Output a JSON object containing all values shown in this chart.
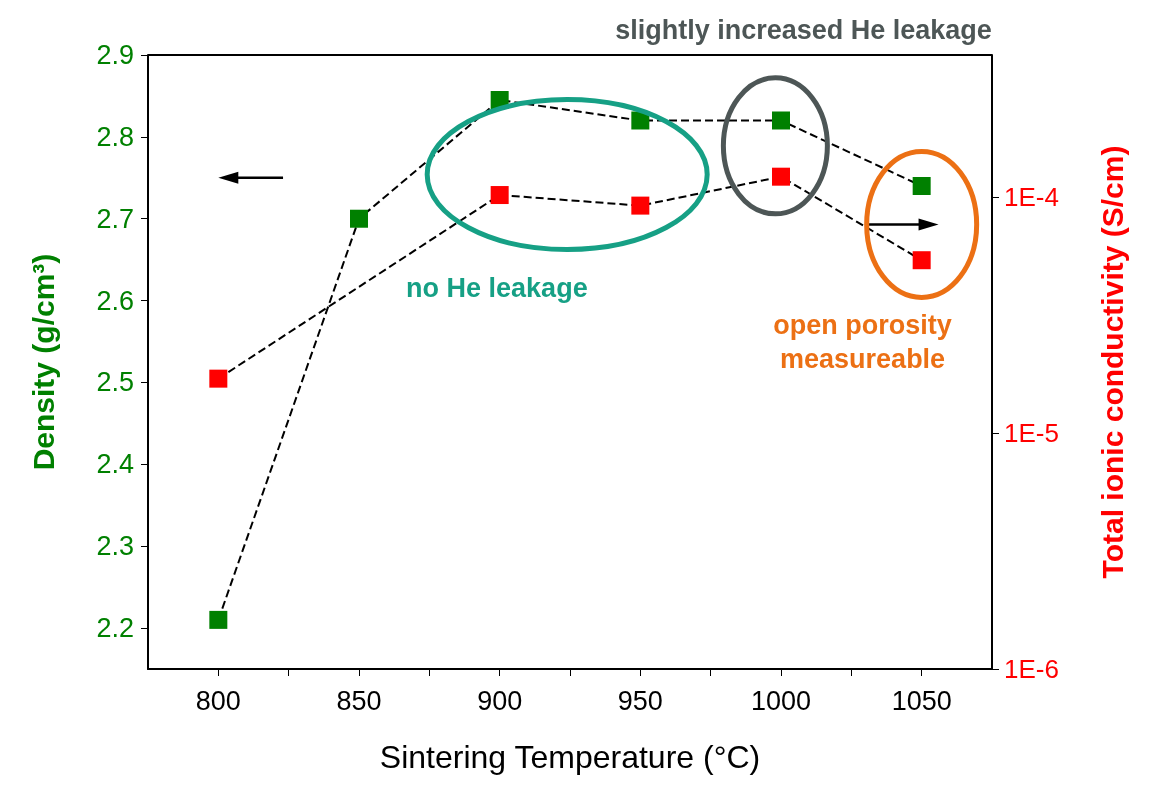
{
  "chart_data": {
    "type": "line",
    "xlabel": "Sintering Temperature (°C)",
    "ylabel": "Density (g/cm³)",
    "y2label": "Total ionic conductivity (S/cm)",
    "x": [
      800,
      850,
      900,
      950,
      1000,
      1050
    ],
    "series": [
      {
        "color": "#008000",
        "values": [
          2.21,
          2.7,
          2.845,
          2.82,
          2.82,
          2.74
        ]
      },
      {
        "color": "#ff0000",
        "axis": "y2",
        "x": [
          800,
          900,
          950,
          1000,
          1050
        ],
        "values": [
          1.7e-05,
          0.000102,
          9.2e-05,
          0.000122,
          5.4e-05
        ]
      }
    ],
    "xlim": [
      775,
      1075
    ],
    "xticks": [
      800,
      {
        "value": 825,
        "label": null
      },
      850,
      {
        "value": 875,
        "label": null
      },
      900,
      {
        "value": 925,
        "label": null
      },
      950,
      {
        "value": 975,
        "label": null
      },
      1000,
      {
        "value": 1025,
        "label": null
      },
      1050
    ],
    "ylim": [
      2.15,
      2.9
    ],
    "yticks": [
      2.2,
      2.3,
      2.4,
      2.5,
      2.6,
      2.7,
      2.8,
      2.9
    ],
    "y2lim": [
      1e-06,
      0.0004
    ],
    "y2ticks": [
      {
        "value": 1e-06,
        "label": "1E-6"
      },
      {
        "value": 1e-05,
        "label": "1E-5"
      },
      {
        "value": 0.0001,
        "label": "1E-4"
      }
    ],
    "log": "y2",
    "marker": "square",
    "line_style": "dashed",
    "grid": false,
    "annotations": [
      "slightly increased He leakage",
      "no He leakage",
      "open porosity\nmeasureable"
    ]
  }
}
